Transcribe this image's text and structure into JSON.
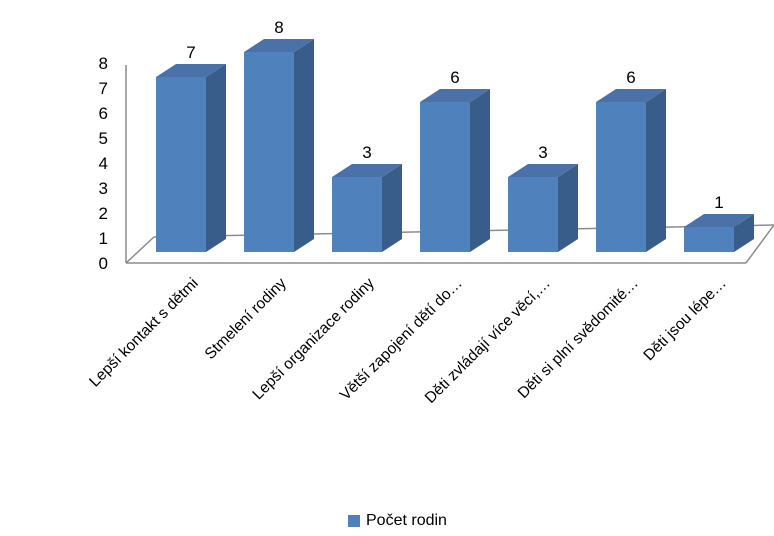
{
  "chart_data": {
    "type": "bar",
    "categories": [
      "Lepší kontakt s dětmi",
      "Stmelení rodiny",
      "Lepší organizace rodiny",
      "Větší zapojení dětí do…",
      "Děti zvládají více věcí,…",
      "Děti si plní svědomité…",
      "Děti jsou lépe…"
    ],
    "series": [
      {
        "name": "Počet rodin",
        "values": [
          7,
          8,
          3,
          6,
          3,
          6,
          1
        ],
        "color": "#4f81bd"
      }
    ],
    "ylim": [
      0,
      8
    ],
    "yticks": [
      "0",
      "1",
      "2",
      "3",
      "4",
      "5",
      "6",
      "7",
      "8"
    ],
    "data_labels": true,
    "grid": false,
    "legend": "bottom",
    "colors": {
      "bar_front": "#4f81bd",
      "bar_side": "#385d8a",
      "bar_top": "#4a72a8",
      "axis": "#8c8c8c"
    }
  },
  "legend": {
    "label": "Počet rodin"
  }
}
